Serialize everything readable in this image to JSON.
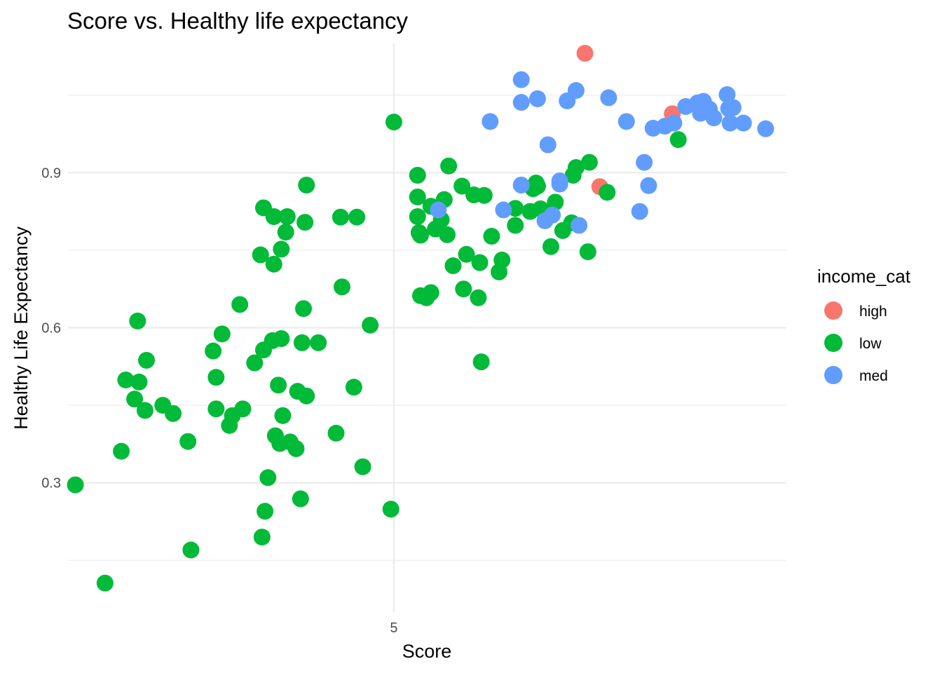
{
  "chart_data": {
    "type": "scatter",
    "title": "Score vs. Healthy life expectancy",
    "xlabel": "Score",
    "ylabel": "Healthy Life Expectancy",
    "xlim": [
      2.8,
      7.65
    ],
    "ylim": [
      0.05,
      1.15
    ],
    "x_ticks": [
      5
    ],
    "x_tick_labels": [
      "5"
    ],
    "y_ticks": [
      0.3,
      0.6,
      0.9
    ],
    "y_tick_labels": [
      "0.3",
      "0.6",
      "0.9"
    ],
    "y_minor_ticks": [
      0.15,
      0.45,
      0.75,
      1.05
    ],
    "grid": true,
    "legend": {
      "title": "income_cat",
      "position": "right",
      "entries": [
        {
          "key": "high",
          "label": "high",
          "color": "#F8766D"
        },
        {
          "key": "low",
          "label": "low",
          "color": "#00BA38"
        },
        {
          "key": "med",
          "label": "med",
          "color": "#619CFF"
        }
      ]
    },
    "series": [
      {
        "name": "high",
        "color": "#F8766D",
        "points": [
          [
            6.29,
            1.131
          ],
          [
            6.39,
            0.873
          ],
          [
            6.88,
            1.014
          ]
        ]
      },
      {
        "name": "low",
        "color": "#00BA38",
        "points": [
          [
            2.85,
            0.296
          ],
          [
            3.05,
            0.106
          ],
          [
            3.16,
            0.361
          ],
          [
            3.19,
            0.499
          ],
          [
            3.27,
            0.613
          ],
          [
            3.25,
            0.462
          ],
          [
            3.28,
            0.495
          ],
          [
            3.32,
            0.44
          ],
          [
            3.33,
            0.537
          ],
          [
            3.44,
            0.45
          ],
          [
            3.51,
            0.434
          ],
          [
            3.61,
            0.38
          ],
          [
            3.63,
            0.17
          ],
          [
            3.78,
            0.555
          ],
          [
            3.8,
            0.443
          ],
          [
            3.8,
            0.504
          ],
          [
            3.84,
            0.588
          ],
          [
            3.89,
            0.411
          ],
          [
            3.91,
            0.43
          ],
          [
            3.96,
            0.645
          ],
          [
            3.98,
            0.443
          ],
          [
            4.06,
            0.532
          ],
          [
            4.1,
            0.741
          ],
          [
            4.11,
            0.195
          ],
          [
            4.12,
            0.832
          ],
          [
            4.12,
            0.557
          ],
          [
            4.13,
            0.245
          ],
          [
            4.15,
            0.31
          ],
          [
            4.18,
            0.575
          ],
          [
            4.19,
            0.723
          ],
          [
            4.19,
            0.815
          ],
          [
            4.2,
            0.391
          ],
          [
            4.22,
            0.489
          ],
          [
            4.23,
            0.376
          ],
          [
            4.24,
            0.579
          ],
          [
            4.24,
            0.752
          ],
          [
            4.25,
            0.43
          ],
          [
            4.27,
            0.785
          ],
          [
            4.28,
            0.815
          ],
          [
            4.3,
            0.379
          ],
          [
            4.34,
            0.366
          ],
          [
            4.35,
            0.477
          ],
          [
            4.37,
            0.269
          ],
          [
            4.38,
            0.571
          ],
          [
            4.39,
            0.637
          ],
          [
            4.4,
            0.804
          ],
          [
            4.41,
            0.876
          ],
          [
            4.41,
            0.468
          ],
          [
            4.49,
            0.571
          ],
          [
            4.61,
            0.396
          ],
          [
            4.64,
            0.814
          ],
          [
            4.65,
            0.679
          ],
          [
            4.73,
            0.485
          ],
          [
            4.75,
            0.814
          ],
          [
            4.79,
            0.331
          ],
          [
            4.84,
            0.605
          ],
          [
            4.98,
            0.249
          ],
          [
            5.0,
            0.998
          ],
          [
            5.16,
            0.895
          ],
          [
            5.16,
            0.853
          ],
          [
            5.16,
            0.815
          ],
          [
            5.17,
            0.784
          ],
          [
            5.18,
            0.662
          ],
          [
            5.18,
            0.779
          ],
          [
            5.22,
            0.658
          ],
          [
            5.25,
            0.668
          ],
          [
            5.25,
            0.835
          ],
          [
            5.28,
            0.791
          ],
          [
            5.32,
            0.809
          ],
          [
            5.34,
            0.848
          ],
          [
            5.36,
            0.78
          ],
          [
            5.37,
            0.913
          ],
          [
            5.4,
            0.72
          ],
          [
            5.46,
            0.874
          ],
          [
            5.47,
            0.675
          ],
          [
            5.49,
            0.742
          ],
          [
            5.54,
            0.857
          ],
          [
            5.57,
            0.658
          ],
          [
            5.58,
            0.726
          ],
          [
            5.59,
            0.534
          ],
          [
            5.61,
            0.856
          ],
          [
            5.66,
            0.777
          ],
          [
            5.71,
            0.708
          ],
          [
            5.73,
            0.731
          ],
          [
            5.82,
            0.798
          ],
          [
            5.82,
            0.831
          ],
          [
            5.92,
            0.825
          ],
          [
            5.94,
            0.869
          ],
          [
            5.97,
            0.874
          ],
          [
            5.96,
            0.88
          ],
          [
            5.99,
            0.83
          ],
          [
            6.06,
            0.757
          ],
          [
            6.09,
            0.843
          ],
          [
            6.14,
            0.788
          ],
          [
            6.21,
            0.895
          ],
          [
            6.2,
            0.803
          ],
          [
            6.23,
            0.91
          ],
          [
            6.31,
            0.747
          ],
          [
            6.32,
            0.92
          ],
          [
            6.44,
            0.862
          ],
          [
            6.92,
            0.964
          ]
        ]
      },
      {
        "name": "med",
        "color": "#619CFF",
        "points": [
          [
            5.3,
            0.828
          ],
          [
            5.65,
            0.999
          ],
          [
            5.74,
            0.828
          ],
          [
            5.86,
            1.08
          ],
          [
            5.86,
            1.036
          ],
          [
            5.86,
            0.876
          ],
          [
            5.97,
            1.043
          ],
          [
            6.02,
            0.807
          ],
          [
            6.04,
            0.954
          ],
          [
            6.07,
            0.818
          ],
          [
            6.12,
            0.878
          ],
          [
            6.12,
            0.884
          ],
          [
            6.17,
            1.039
          ],
          [
            6.23,
            1.059
          ],
          [
            6.25,
            0.798
          ],
          [
            6.45,
            1.045
          ],
          [
            6.57,
            0.999
          ],
          [
            6.66,
            0.825
          ],
          [
            6.69,
            0.92
          ],
          [
            6.72,
            0.875
          ],
          [
            6.75,
            0.986
          ],
          [
            6.83,
            0.99
          ],
          [
            6.89,
            0.996
          ],
          [
            6.97,
            1.028
          ],
          [
            7.05,
            1.035
          ],
          [
            7.07,
            1.015
          ],
          [
            7.09,
            1.038
          ],
          [
            7.13,
            1.023
          ],
          [
            7.16,
            1.006
          ],
          [
            7.25,
            1.051
          ],
          [
            7.29,
            1.026
          ],
          [
            7.26,
            1.024
          ],
          [
            7.27,
            0.996
          ],
          [
            7.36,
            0.996
          ],
          [
            7.51,
            0.985
          ]
        ]
      }
    ]
  }
}
